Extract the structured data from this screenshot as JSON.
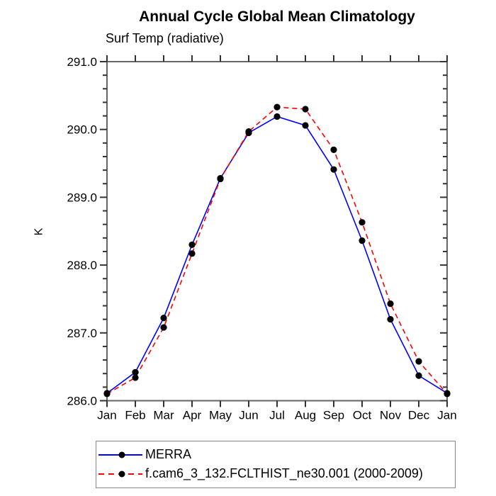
{
  "chart_data": {
    "type": "line",
    "title": "Annual Cycle Global Mean Climatology",
    "subtitle": "Surf Temp (radiative)",
    "xlabel": "",
    "ylabel": "K",
    "x_tick_labels": [
      "Jan",
      "Feb",
      "Mar",
      "Apr",
      "May",
      "Jun",
      "Jul",
      "Aug",
      "Sep",
      "Oct",
      "Nov",
      "Dec",
      "Jan"
    ],
    "ylim": [
      286.0,
      291.0
    ],
    "y_major_step": 1.0,
    "y_minor_step": 0.2,
    "y_tick_labels": [
      "286.0",
      "287.0",
      "288.0",
      "289.0",
      "290.0",
      "291.0"
    ],
    "grid": false,
    "legend_position": "bottom-left",
    "series": [
      {
        "name": "MERRA",
        "color": "#0000ff",
        "line_style": "solid",
        "marker": "circle",
        "marker_color": "#000000",
        "values": [
          286.11,
          286.42,
          287.22,
          288.3,
          289.28,
          289.95,
          290.19,
          290.06,
          289.41,
          288.36,
          287.2,
          286.37,
          286.11
        ]
      },
      {
        "name": "f.cam6_3_132.FCLTHIST_ne30.001 (2000-2009)",
        "color": "#ff0000",
        "line_style": "dashed",
        "marker": "circle",
        "marker_color": "#000000",
        "values": [
          286.1,
          286.34,
          287.08,
          288.17,
          289.27,
          289.97,
          290.33,
          290.3,
          289.7,
          288.63,
          287.43,
          286.58,
          286.1
        ]
      }
    ],
    "colors": {
      "axis": "#666666",
      "tick": "#333333",
      "text": "#000000",
      "legend_border": "#888888",
      "background": "#ffffff"
    }
  }
}
